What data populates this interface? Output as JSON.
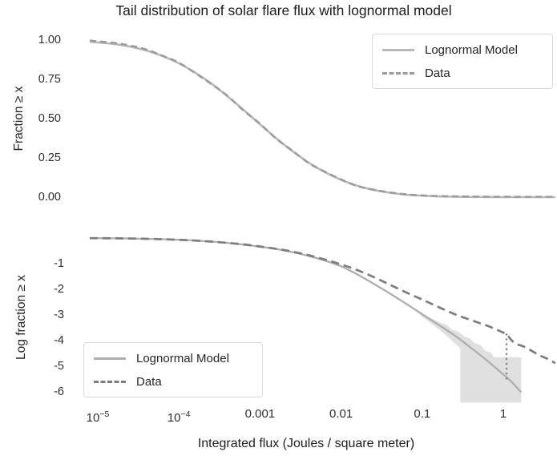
{
  "title": "Tail distribution of solar flare flux with lognormal model",
  "style": {
    "background": "#ffffff",
    "text_color": "#262626",
    "legend_border": "#d9d9d9"
  },
  "chart_data": [
    {
      "id": "top",
      "type": "line",
      "ylabel": "Fraction ≥ x",
      "x_scale": "log10",
      "xlim_log10": [
        -5.2,
        0.66
      ],
      "ylim": [
        0,
        1.02
      ],
      "grid": false,
      "legend_position": "upper right",
      "yticks": [
        {
          "v": 1.0,
          "label": "1.00"
        },
        {
          "v": 0.75,
          "label": "0.75"
        },
        {
          "v": 0.5,
          "label": "0.50"
        },
        {
          "v": 0.25,
          "label": "0.25"
        },
        {
          "v": 0.0,
          "label": "0.00"
        }
      ],
      "series": [
        {
          "name": "Lognormal Model",
          "style": "solid",
          "color": "#b8b8b8",
          "points": [
            [
              -5.1,
              0.989
            ],
            [
              -4.8,
              0.975
            ],
            [
              -4.6,
              0.958
            ],
            [
              -4.4,
              0.933
            ],
            [
              -4.2,
              0.898
            ],
            [
              -4.0,
              0.852
            ],
            [
              -3.8,
              0.793
            ],
            [
              -3.6,
              0.723
            ],
            [
              -3.4,
              0.642
            ],
            [
              -3.2,
              0.554
            ],
            [
              -3.0,
              0.464
            ],
            [
              -2.8,
              0.375
            ],
            [
              -2.6,
              0.293
            ],
            [
              -2.4,
              0.22
            ],
            [
              -2.2,
              0.159
            ],
            [
              -2.0,
              0.11
            ],
            [
              -1.8,
              0.073
            ],
            [
              -1.6,
              0.046
            ],
            [
              -1.4,
              0.028
            ],
            [
              -1.2,
              0.016
            ],
            [
              -1.0,
              0.009
            ],
            [
              -0.8,
              0.0048
            ],
            [
              -0.6,
              0.0024
            ],
            [
              -0.4,
              0.0012
            ],
            [
              -0.2,
              0.0005
            ],
            [
              0.0,
              0.0002
            ],
            [
              0.3,
              0.0001
            ],
            [
              0.64,
              0.0
            ]
          ]
        },
        {
          "name": "Data",
          "style": "dashed",
          "color": "#9a9a9a",
          "points": [
            [
              -5.1,
              0.997
            ],
            [
              -4.8,
              0.982
            ],
            [
              -4.6,
              0.965
            ],
            [
              -4.4,
              0.94
            ],
            [
              -4.2,
              0.9
            ],
            [
              -4.0,
              0.856
            ],
            [
              -3.8,
              0.79
            ],
            [
              -3.6,
              0.72
            ],
            [
              -3.4,
              0.645
            ],
            [
              -3.2,
              0.55
            ],
            [
              -3.0,
              0.468
            ],
            [
              -2.8,
              0.372
            ],
            [
              -2.6,
              0.296
            ],
            [
              -2.4,
              0.217
            ],
            [
              -2.2,
              0.162
            ],
            [
              -2.0,
              0.113
            ],
            [
              -1.8,
              0.07
            ],
            [
              -1.6,
              0.048
            ],
            [
              -1.4,
              0.03
            ],
            [
              -1.2,
              0.018
            ],
            [
              -1.0,
              0.011
            ],
            [
              -0.8,
              0.007
            ],
            [
              -0.6,
              0.005
            ],
            [
              -0.4,
              0.004
            ],
            [
              -0.2,
              0.003
            ],
            [
              0.0,
              0.003
            ],
            [
              0.3,
              0.002
            ],
            [
              0.64,
              0.002
            ]
          ]
        }
      ]
    },
    {
      "id": "bottom",
      "type": "line",
      "ylabel": "Log fraction ≥ x",
      "xlabel": "Integrated flux (Joules / square meter)",
      "x_scale": "log10",
      "xlim_log10": [
        -5.2,
        0.66
      ],
      "ylim": [
        -6.45,
        0.15
      ],
      "grid": false,
      "legend_position": "lower left",
      "yticks": [
        {
          "v": -1,
          "label": "-1"
        },
        {
          "v": -2,
          "label": "-2"
        },
        {
          "v": -3,
          "label": "-3"
        },
        {
          "v": -4,
          "label": "-4"
        },
        {
          "v": -5,
          "label": "-5"
        },
        {
          "v": -6,
          "label": "-6"
        }
      ],
      "xticks": [
        {
          "log10": -5,
          "label": "10^−5"
        },
        {
          "log10": -4,
          "label": "10^−4"
        },
        {
          "log10": -3,
          "label": "0.001"
        },
        {
          "log10": -2,
          "label": "0.01"
        },
        {
          "log10": -1,
          "label": "0.1"
        },
        {
          "log10": 0,
          "label": "1"
        }
      ],
      "series": [
        {
          "name": "Lognormal Model",
          "style": "solid",
          "color": "#aeaeae",
          "points": [
            [
              -5.1,
              -0.005
            ],
            [
              -4.8,
              -0.011
            ],
            [
              -4.6,
              -0.019
            ],
            [
              -4.4,
              -0.03
            ],
            [
              -4.2,
              -0.047
            ],
            [
              -4.0,
              -0.07
            ],
            [
              -3.8,
              -0.1
            ],
            [
              -3.6,
              -0.14
            ],
            [
              -3.4,
              -0.19
            ],
            [
              -3.2,
              -0.26
            ],
            [
              -3.0,
              -0.34
            ],
            [
              -2.8,
              -0.43
            ],
            [
              -2.6,
              -0.55
            ],
            [
              -2.4,
              -0.7
            ],
            [
              -2.2,
              -0.88
            ],
            [
              -2.0,
              -1.1
            ],
            [
              -1.8,
              -1.42
            ],
            [
              -1.6,
              -1.78
            ],
            [
              -1.4,
              -2.16
            ],
            [
              -1.2,
              -2.56
            ],
            [
              -1.0,
              -2.97
            ],
            [
              -0.8,
              -3.38
            ],
            [
              -0.6,
              -3.8
            ],
            [
              -0.4,
              -4.28
            ],
            [
              -0.2,
              -4.78
            ],
            [
              0.0,
              -5.32
            ],
            [
              0.1,
              -5.6
            ],
            [
              0.22,
              -6.02
            ]
          ]
        },
        {
          "name": "Data",
          "style": "dashed",
          "color": "#7d7d7d",
          "points": [
            [
              -5.1,
              -0.005
            ],
            [
              -4.8,
              -0.011
            ],
            [
              -4.6,
              -0.019
            ],
            [
              -4.4,
              -0.03
            ],
            [
              -4.2,
              -0.047
            ],
            [
              -4.0,
              -0.07
            ],
            [
              -3.8,
              -0.1
            ],
            [
              -3.6,
              -0.14
            ],
            [
              -3.4,
              -0.19
            ],
            [
              -3.2,
              -0.25
            ],
            [
              -3.0,
              -0.33
            ],
            [
              -2.8,
              -0.42
            ],
            [
              -2.6,
              -0.53
            ],
            [
              -2.4,
              -0.67
            ],
            [
              -2.2,
              -0.84
            ],
            [
              -2.0,
              -1.03
            ],
            [
              -1.8,
              -1.25
            ],
            [
              -1.6,
              -1.52
            ],
            [
              -1.4,
              -1.82
            ],
            [
              -1.2,
              -2.12
            ],
            [
              -1.0,
              -2.4
            ],
            [
              -0.8,
              -2.69
            ],
            [
              -0.6,
              -2.97
            ],
            [
              -0.4,
              -3.2
            ],
            [
              -0.2,
              -3.42
            ],
            [
              -0.05,
              -3.62
            ],
            [
              0.04,
              -3.76
            ],
            [
              0.1,
              -3.98
            ],
            [
              0.16,
              -4.13
            ],
            [
              0.25,
              -4.23
            ],
            [
              0.35,
              -4.4
            ],
            [
              0.45,
              -4.58
            ],
            [
              0.55,
              -4.72
            ],
            [
              0.64,
              -4.88
            ]
          ]
        }
      ],
      "band": {
        "name": "model uncertainty band",
        "color": "#dadada",
        "opacity": 0.85,
        "polygon": [
          [
            -1.2,
            -2.56
          ],
          [
            -1.05,
            -2.85
          ],
          [
            -0.9,
            -3.12
          ],
          [
            -0.78,
            -3.3
          ],
          [
            -0.7,
            -3.38
          ],
          [
            -0.62,
            -3.6
          ],
          [
            -0.55,
            -3.65
          ],
          [
            -0.48,
            -3.85
          ],
          [
            -0.42,
            -3.9
          ],
          [
            -0.35,
            -4.1
          ],
          [
            -0.28,
            -4.18
          ],
          [
            -0.22,
            -4.4
          ],
          [
            -0.15,
            -4.47
          ],
          [
            -0.12,
            -4.65
          ],
          [
            0.22,
            -4.65
          ],
          [
            0.22,
            -6.42
          ],
          [
            -0.53,
            -6.42
          ],
          [
            -0.53,
            -4.3
          ],
          [
            -0.6,
            -4.1
          ],
          [
            -0.7,
            -3.82
          ],
          [
            -0.8,
            -3.55
          ],
          [
            -0.9,
            -3.3
          ],
          [
            -1.0,
            -3.07
          ],
          [
            -1.1,
            -2.8
          ],
          [
            -1.2,
            -2.56
          ]
        ]
      },
      "marker_line": {
        "name": "data vs model gap marker at x = 1",
        "style": "dotted",
        "color": "#8a8a8a",
        "x_log10": 0.04,
        "y_top": -3.76,
        "y_bottom": -5.5
      }
    }
  ]
}
